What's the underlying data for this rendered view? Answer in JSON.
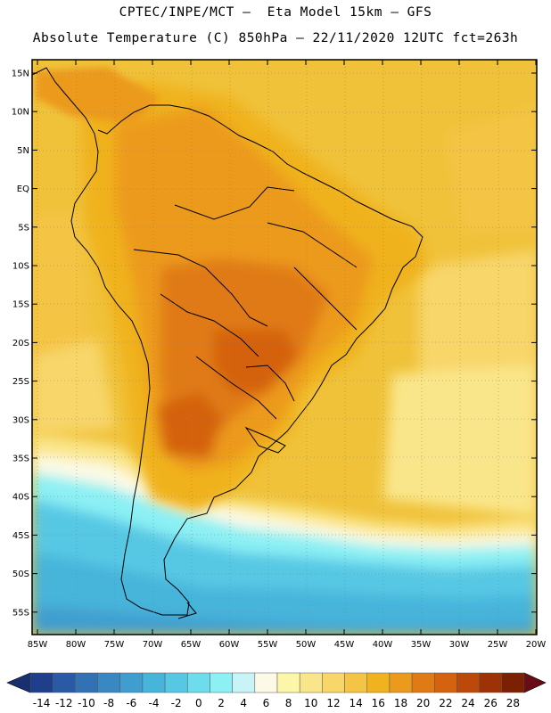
{
  "title": {
    "line1": "CPTEC/INPE/MCT –  Eta Model 15km – GFS",
    "line2": "Absolute Temperature (C) 850hPa – 22/11/2020 12UTC fct=263h"
  },
  "lat_labels": [
    "15N",
    "10N",
    "5N",
    "EQ",
    "5S",
    "10S",
    "15S",
    "20S",
    "25S",
    "30S",
    "35S",
    "40S",
    "45S",
    "50S",
    "55S"
  ],
  "lon_labels": [
    "85W",
    "80W",
    "75W",
    "70W",
    "65W",
    "60W",
    "55W",
    "50W",
    "45W",
    "40W",
    "35W",
    "30W",
    "25W",
    "20W"
  ],
  "colorbar": {
    "labels": [
      "-14",
      "-12",
      "-10",
      "-8",
      "-6",
      "-4",
      "-2",
      "0",
      "2",
      "4",
      "6",
      "8",
      "10",
      "12",
      "14",
      "16",
      "18",
      "20",
      "22",
      "24",
      "26",
      "28"
    ],
    "colors": [
      "#1f3f8c",
      "#2a5aa6",
      "#3272b4",
      "#3a88c2",
      "#3f9ecf",
      "#47b4da",
      "#56c8e4",
      "#6ddcec",
      "#8cf0f4",
      "#c8f4f8",
      "#fcfae6",
      "#fcf6a8",
      "#fae68a",
      "#f8d66a",
      "#f4c444",
      "#f0b21e",
      "#ec9a1e",
      "#e07a14",
      "#d4620e",
      "#bc480a",
      "#9c3206",
      "#7c2004"
    ],
    "low_arrow_color": "#18306e",
    "high_arrow_color": "#6a0c16"
  }
}
